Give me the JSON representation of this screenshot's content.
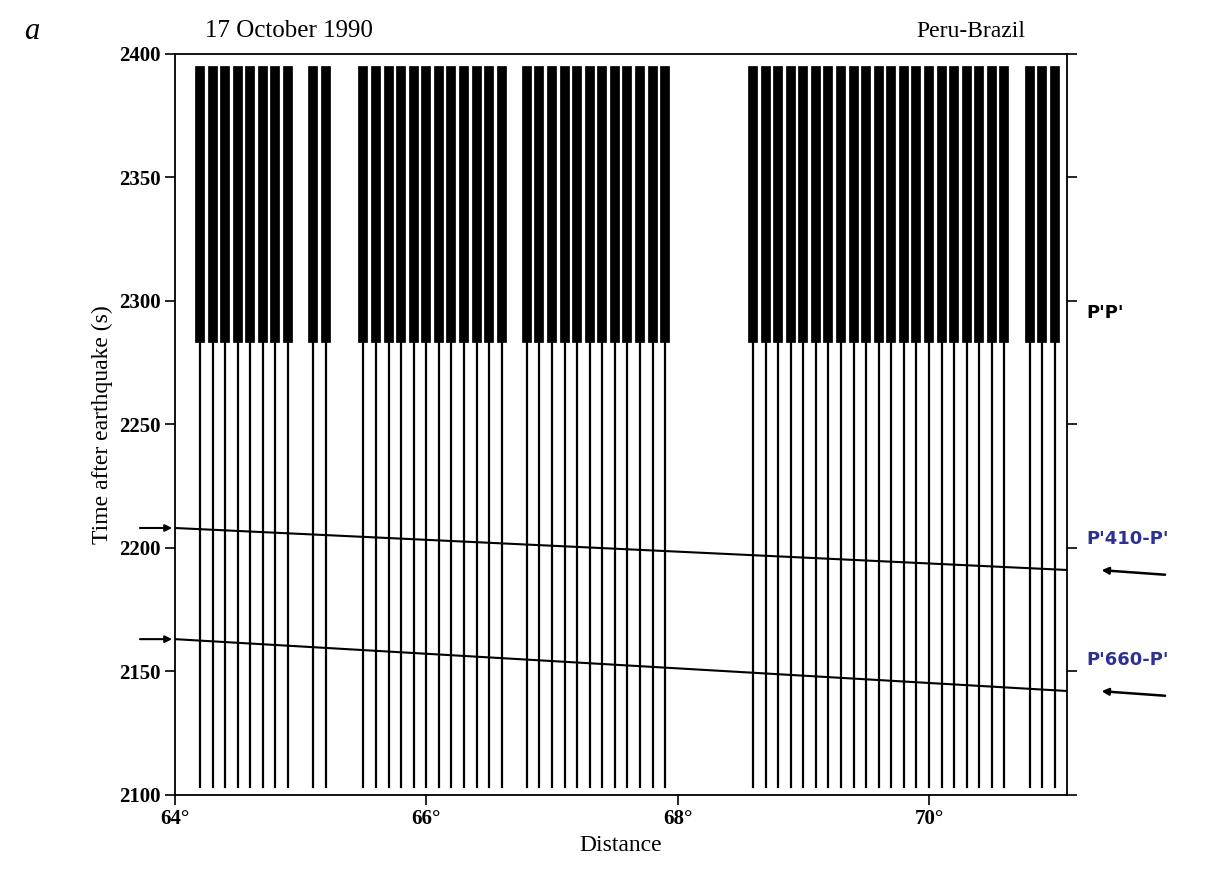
{
  "chart_data": {
    "type": "seismic_section",
    "panel_label": "a",
    "title": "17 October 1990",
    "region": "Peru-Brazil",
    "x_label": "Distance",
    "y_label": "Time after earthquake (s)",
    "xlim": [
      64,
      71.1
    ],
    "ylim": [
      2100,
      2400
    ],
    "xticks": [
      {
        "value": 64,
        "label": "64°"
      },
      {
        "value": 66,
        "label": "66°"
      },
      {
        "value": 68,
        "label": "68°"
      },
      {
        "value": 70,
        "label": "70°"
      }
    ],
    "yticks": [
      2100,
      2150,
      2200,
      2250,
      2300,
      2350,
      2400
    ],
    "traces": {
      "color": "#000000",
      "distances": [
        64.2,
        64.3,
        64.4,
        64.5,
        64.6,
        64.7,
        64.8,
        64.9,
        65.1,
        65.2,
        65.5,
        65.6,
        65.7,
        65.8,
        65.9,
        66.0,
        66.1,
        66.2,
        66.3,
        66.4,
        66.5,
        66.6,
        66.8,
        66.9,
        67.0,
        67.1,
        67.2,
        67.3,
        67.4,
        67.5,
        67.6,
        67.7,
        67.8,
        67.9,
        68.6,
        68.7,
        68.8,
        68.9,
        69.0,
        69.1,
        69.2,
        69.3,
        69.4,
        69.5,
        69.6,
        69.7,
        69.8,
        69.9,
        70.0,
        70.1,
        70.2,
        70.3,
        70.4,
        70.5,
        70.6,
        70.8,
        70.9,
        71.0
      ],
      "time_window": [
        2103,
        2393
      ]
    },
    "phases": [
      {
        "name": "P'P'",
        "time": 2295,
        "window": [
          2285,
          2395
        ],
        "color": "#000000"
      },
      {
        "name": "P'410-P'",
        "x": [
          64,
          71.1
        ],
        "values": [
          2208,
          2191
        ],
        "color": "#2e3192"
      },
      {
        "name": "P'660-P'",
        "x": [
          64,
          71.1
        ],
        "values": [
          2163,
          2142
        ],
        "color": "#2e3192"
      }
    ]
  }
}
